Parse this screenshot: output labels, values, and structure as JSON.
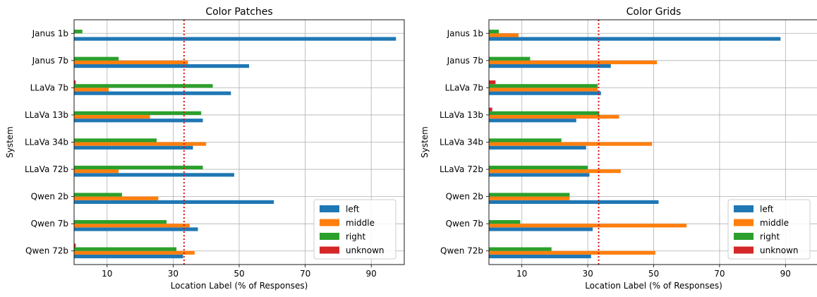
{
  "chart_data": [
    {
      "type": "bar",
      "orientation": "horizontal",
      "title": "Color Patches",
      "xlabel": "Location Label (% of Responses)",
      "ylabel": "System",
      "xlim": [
        0,
        100
      ],
      "xticks": [
        10,
        30,
        50,
        70,
        90
      ],
      "grid": true,
      "reference_line": {
        "x": 33.3,
        "style": "dotted",
        "color": "#e01010"
      },
      "legend_position": "lower-right",
      "categories": [
        "Janus 1b",
        "Janus 7b",
        "LLaVa 7b",
        "LLaVa 13b",
        "LLaVa 34b",
        "LLaVa 72b",
        "Qwen 2b",
        "Qwen 7b",
        "Qwen 72b"
      ],
      "series": [
        {
          "name": "left",
          "color": "#1f77b4",
          "values": [
            97.5,
            53,
            47.5,
            39,
            36,
            48.5,
            60.5,
            37.5,
            33
          ]
        },
        {
          "name": "middle",
          "color": "#ff7f0e",
          "values": [
            0,
            34.5,
            10.5,
            23,
            40,
            13.5,
            25.5,
            35,
            36.5
          ]
        },
        {
          "name": "right",
          "color": "#2ca02c",
          "values": [
            2.5,
            13.5,
            42,
            38.5,
            25,
            39,
            14.5,
            28,
            31
          ]
        },
        {
          "name": "unknown",
          "color": "#d62728",
          "values": [
            0,
            0,
            0.5,
            0,
            0,
            0,
            0,
            0,
            0.5
          ]
        }
      ]
    },
    {
      "type": "bar",
      "orientation": "horizontal",
      "title": "Color Grids",
      "xlabel": "Location Label (% of Responses)",
      "ylabel": "System",
      "xlim": [
        0,
        100
      ],
      "xticks": [
        10,
        30,
        50,
        70,
        90
      ],
      "grid": true,
      "reference_line": {
        "x": 33.3,
        "style": "dotted",
        "color": "#e01010"
      },
      "legend_position": "lower-right",
      "categories": [
        "Janus 1b",
        "Janus 7b",
        "LLaVa 7b",
        "LLaVa 13b",
        "LLaVa 34b",
        "LLaVa 72b",
        "Qwen 2b",
        "Qwen 7b",
        "Qwen 72b"
      ],
      "series": [
        {
          "name": "left",
          "color": "#1f77b4",
          "values": [
            88.5,
            37,
            34,
            26.5,
            29.5,
            30.5,
            51.5,
            31.5,
            31
          ]
        },
        {
          "name": "middle",
          "color": "#ff7f0e",
          "values": [
            9,
            51,
            33,
            39.5,
            49.5,
            40,
            24.5,
            60,
            50.5
          ]
        },
        {
          "name": "right",
          "color": "#2ca02c",
          "values": [
            3,
            12.5,
            33,
            33.5,
            22,
            30,
            24.5,
            9.5,
            19
          ]
        },
        {
          "name": "unknown",
          "color": "#d62728",
          "values": [
            0,
            0,
            2,
            1,
            0,
            0,
            0,
            0,
            0
          ]
        }
      ]
    }
  ]
}
